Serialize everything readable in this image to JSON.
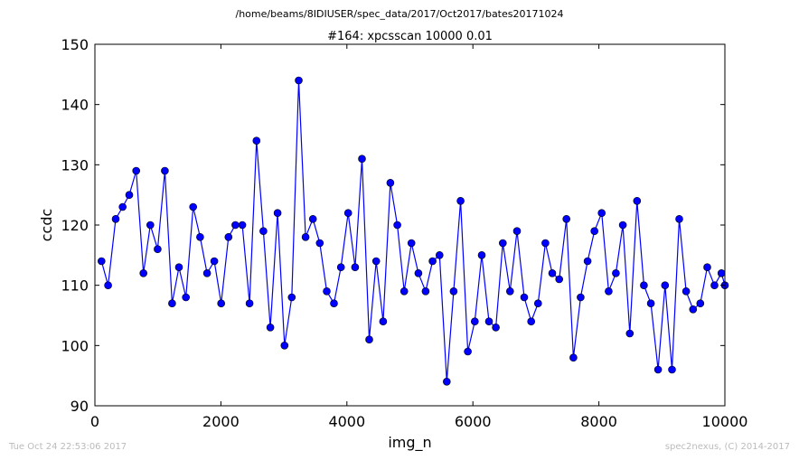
{
  "suptitle": "/home/beams/8IDIUSER/spec_data/2017/Oct2017/bates20171024",
  "footer": {
    "timestamp": "Tue Oct 24 22:53:06 2017",
    "credit": "spec2nexus, (C) 2014-2017"
  },
  "chart_data": {
    "type": "line",
    "title": "#164: xpcsscan 10000 0.01",
    "xlabel": "img_n",
    "ylabel": "ccdc",
    "xlim": [
      0,
      10000
    ],
    "ylim": [
      90,
      150
    ],
    "xticks": [
      0,
      2000,
      4000,
      6000,
      8000,
      10000
    ],
    "yticks": [
      90,
      100,
      110,
      120,
      130,
      140,
      150
    ],
    "grid": false,
    "marker": "circle",
    "color": "#0000ff",
    "series": [
      {
        "x": [
          105,
          210,
          330,
          440,
          545,
          655,
          770,
          880,
          995,
          1110,
          1225,
          1335,
          1445,
          1560,
          1670,
          1780,
          1895,
          2005,
          2120,
          2230,
          2340,
          2455,
          2565,
          2675,
          2785,
          2900,
          3010,
          3125,
          3235,
          3345,
          3460,
          3570,
          3680,
          3795,
          3905,
          4020,
          4130,
          4240,
          4355,
          4465,
          4575,
          4690,
          4800,
          4910,
          5025,
          5135,
          5250,
          5360,
          5470,
          5585,
          5695,
          5805,
          5920,
          6030,
          6140,
          6255,
          6365,
          6475,
          6590,
          6700,
          6815,
          6925,
          7035,
          7150,
          7260,
          7370,
          7485,
          7595,
          7710,
          7820,
          7930,
          8045,
          8155,
          8270,
          8380,
          8490,
          8605,
          8715,
          8825,
          8940,
          9050,
          9160,
          9275,
          9385,
          9495,
          9610,
          9720,
          9835,
          9945,
          10000
        ],
        "y": [
          114,
          110,
          121,
          123,
          125,
          129,
          112,
          120,
          116,
          129,
          107,
          113,
          108,
          123,
          118,
          112,
          114,
          107,
          118,
          120,
          120,
          107,
          134,
          119,
          103,
          122,
          100,
          108,
          144,
          118,
          121,
          117,
          109,
          107,
          113,
          122,
          113,
          131,
          101,
          114,
          104,
          127,
          120,
          109,
          117,
          112,
          109,
          114,
          115,
          94,
          109,
          124,
          99,
          104,
          115,
          104,
          103,
          117,
          109,
          119,
          108,
          104,
          107,
          117,
          112,
          111,
          121,
          98,
          108,
          114,
          119,
          122,
          109,
          112,
          120,
          102,
          124,
          110,
          107,
          96,
          110,
          96,
          121,
          109,
          106,
          107,
          113,
          110,
          112,
          110
        ]
      }
    ]
  }
}
